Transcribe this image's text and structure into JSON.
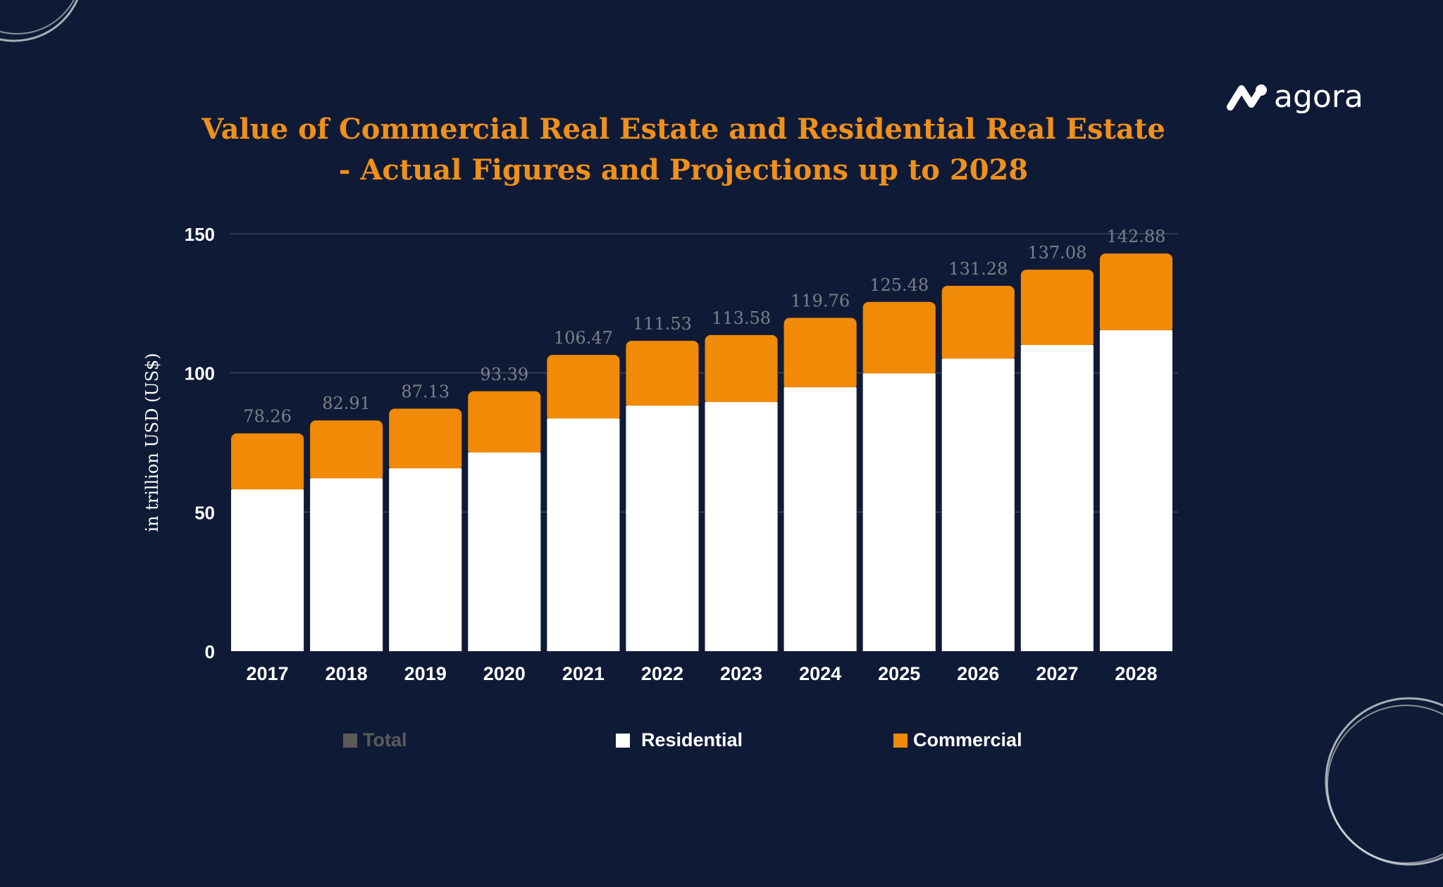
{
  "brand": {
    "name": "agora",
    "icon": "agora-logo-icon"
  },
  "colors": {
    "background": "#0f1b36",
    "residential": "#ffffff",
    "commercial": "#f08a07",
    "total": "#5a5a5a",
    "title": "#f0901a",
    "data_label": "#7a7f8a"
  },
  "chart_data": {
    "type": "bar",
    "stacked": true,
    "title": [
      "Value of Commercial Real Estate and Residential Real Estate",
      "- Actual Figures and Projections up to 2028"
    ],
    "xlabel": "",
    "ylabel": "in trillion USD (US$)",
    "ylim": [
      0,
      150
    ],
    "yticks": [
      "0",
      "50",
      "100",
      "150"
    ],
    "grid": true,
    "legend_placement": "bottom",
    "categories": [
      "2017",
      "2018",
      "2019",
      "2020",
      "2021",
      "2022",
      "2023",
      "2024",
      "2025",
      "2026",
      "2027",
      "2028"
    ],
    "series": [
      {
        "name": "Residential",
        "values": [
          58.1,
          62.1,
          65.7,
          71.4,
          83.6,
          88.2,
          89.5,
          94.8,
          99.8,
          105.1,
          110.0,
          115.3
        ]
      },
      {
        "name": "Commercial",
        "values": [
          20.2,
          20.8,
          21.4,
          22.0,
          22.9,
          23.3,
          24.1,
          25.0,
          25.7,
          26.2,
          27.1,
          27.6
        ]
      }
    ],
    "totals": {
      "name": "Total",
      "values": [
        78.26,
        82.91,
        87.13,
        93.39,
        106.47,
        111.53,
        113.58,
        119.76,
        125.48,
        131.28,
        137.08,
        142.88
      ],
      "labels": [
        "78.26",
        "82.91",
        "87.13",
        "93.39",
        "106.47",
        "111.53",
        "113.58",
        "119.76",
        "125.48",
        "131.28",
        "137.08",
        "142.88"
      ]
    },
    "legend": [
      "Total",
      "Residential",
      "Commercial"
    ]
  }
}
